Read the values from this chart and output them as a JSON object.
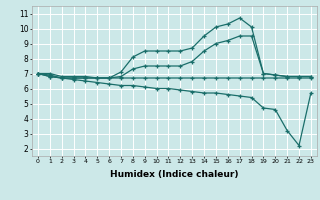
{
  "xlabel": "Humidex (Indice chaleur)",
  "bg_color": "#cce8e8",
  "grid_color": "#ffffff",
  "line_color": "#1a6e6a",
  "xlim": [
    -0.5,
    23.5
  ],
  "ylim": [
    1.5,
    11.5
  ],
  "xticks": [
    0,
    1,
    2,
    3,
    4,
    5,
    6,
    7,
    8,
    9,
    10,
    11,
    12,
    13,
    14,
    15,
    16,
    17,
    18,
    19,
    20,
    21,
    22,
    23
  ],
  "yticks": [
    2,
    3,
    4,
    5,
    6,
    7,
    8,
    9,
    10,
    11
  ],
  "line1_x": [
    0,
    1,
    2,
    3,
    4,
    5,
    6,
    7,
    8,
    9,
    10,
    11,
    12,
    13,
    14,
    15,
    16,
    17,
    18,
    19,
    20,
    21,
    22,
    23
  ],
  "line1_y": [
    7.0,
    7.0,
    6.8,
    6.8,
    6.8,
    6.7,
    6.7,
    7.1,
    8.1,
    8.5,
    8.5,
    8.5,
    8.5,
    8.7,
    9.5,
    10.1,
    10.3,
    10.7,
    10.1,
    7.0,
    6.9,
    6.8,
    6.8,
    6.8
  ],
  "line2_x": [
    0,
    1,
    2,
    3,
    4,
    5,
    6,
    7,
    8,
    9,
    10,
    11,
    12,
    13,
    14,
    15,
    16,
    17,
    18,
    19,
    20,
    21,
    22,
    23
  ],
  "line2_y": [
    7.0,
    6.9,
    6.7,
    6.7,
    6.7,
    6.7,
    6.7,
    6.8,
    7.3,
    7.5,
    7.5,
    7.5,
    7.5,
    7.8,
    8.5,
    9.0,
    9.2,
    9.5,
    9.5,
    7.0,
    6.9,
    6.8,
    6.8,
    6.8
  ],
  "line3_x": [
    0,
    1,
    2,
    3,
    4,
    5,
    6,
    7,
    8,
    9,
    10,
    11,
    12,
    13,
    14,
    15,
    16,
    17,
    18,
    19,
    20,
    21,
    22,
    23
  ],
  "line3_y": [
    7.0,
    6.8,
    6.7,
    6.7,
    6.7,
    6.7,
    6.7,
    6.7,
    6.7,
    6.7,
    6.7,
    6.7,
    6.7,
    6.7,
    6.7,
    6.7,
    6.7,
    6.7,
    6.7,
    6.7,
    6.7,
    6.7,
    6.7,
    6.7
  ],
  "line4_x": [
    0,
    1,
    2,
    3,
    4,
    5,
    6,
    7,
    8,
    9,
    10,
    11,
    12,
    13,
    14,
    15,
    16,
    17,
    18,
    19,
    20,
    21,
    22,
    23
  ],
  "line4_y": [
    7.0,
    6.8,
    6.7,
    6.6,
    6.5,
    6.4,
    6.3,
    6.2,
    6.2,
    6.1,
    6.0,
    6.0,
    5.9,
    5.8,
    5.7,
    5.7,
    5.6,
    5.5,
    5.4,
    4.7,
    4.6,
    3.2,
    2.2,
    5.7
  ]
}
